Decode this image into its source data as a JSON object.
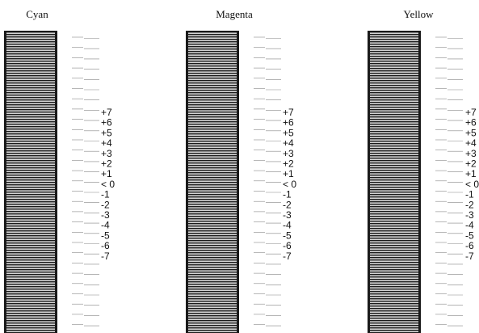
{
  "columns": [
    {
      "title": "Cyan"
    },
    {
      "title": "Magenta"
    },
    {
      "title": "Yellow"
    }
  ],
  "offsets": [
    {
      "label": "+7",
      "value": 7
    },
    {
      "label": "+6",
      "value": 6
    },
    {
      "label": "+5",
      "value": 5
    },
    {
      "label": "+4",
      "value": 4
    },
    {
      "label": "+3",
      "value": 3
    },
    {
      "label": "+2",
      "value": 2
    },
    {
      "label": "+1",
      "value": 1
    },
    {
      "label": "< 0",
      "value": 0
    },
    {
      "label": "-1",
      "value": -1
    },
    {
      "label": "-2",
      "value": -2
    },
    {
      "label": "-3",
      "value": -3
    },
    {
      "label": "-4",
      "value": -4
    },
    {
      "label": "-5",
      "value": -5
    },
    {
      "label": "-6",
      "value": -6
    },
    {
      "label": "-7",
      "value": -7
    }
  ],
  "colors": {
    "ink": "#1a1a1a",
    "background": "#ffffff",
    "tick": "#888888"
  }
}
